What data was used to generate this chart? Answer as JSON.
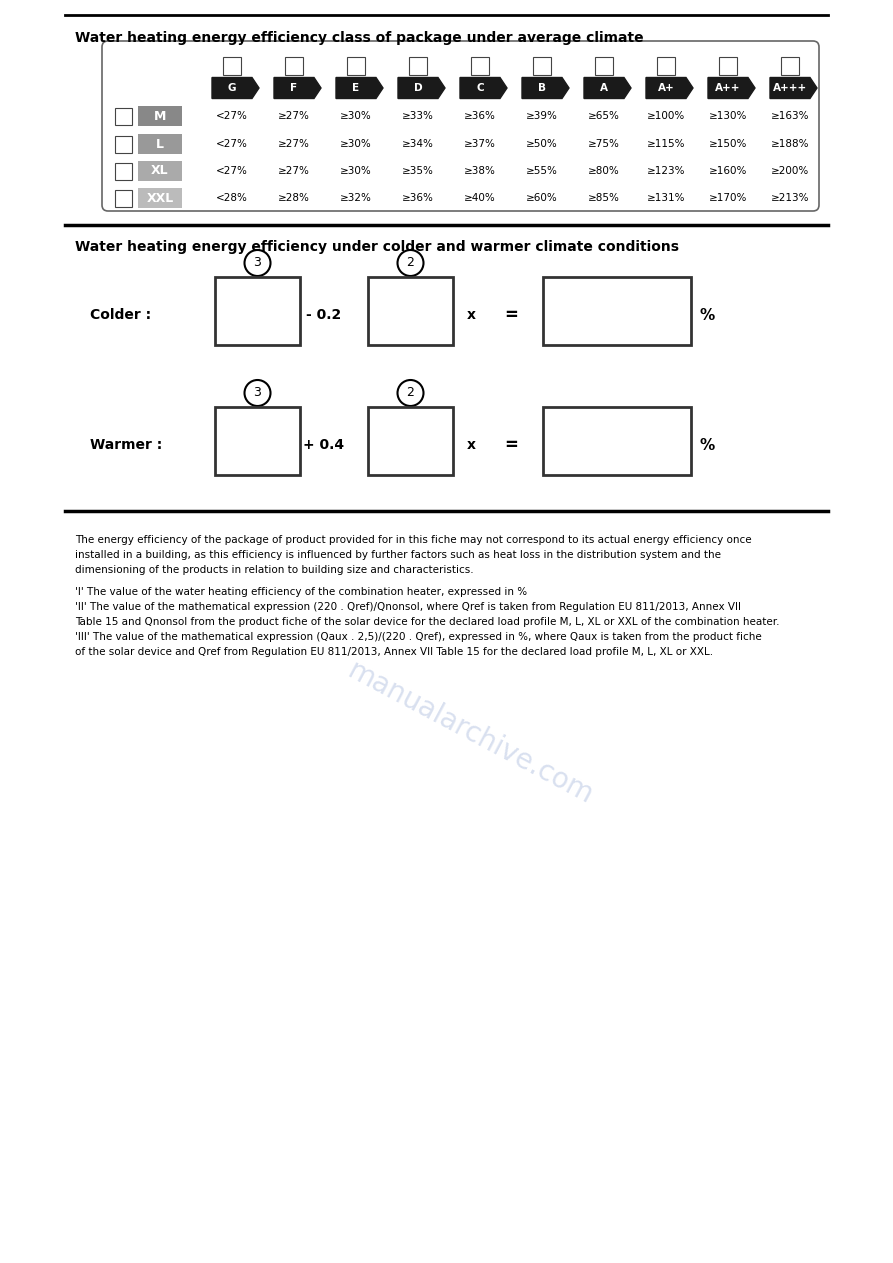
{
  "title1": "Water heating energy efficiency class of package under average climate",
  "title2": "Water heating energy efficiency under colder and warmer climate conditions",
  "bg_color": "#ffffff",
  "text_color": "#000000",
  "header_labels": [
    "G",
    "F",
    "E",
    "D",
    "C",
    "B",
    "A",
    "A+",
    "A++",
    "A+++"
  ],
  "size_labels": [
    "M",
    "L",
    "XL",
    "XXL"
  ],
  "size_colors": [
    "#888888",
    "#999999",
    "#aaaaaa",
    "#bbbbbb"
  ],
  "table_data": [
    [
      "<27%",
      "≥27%",
      "≥30%",
      "≥33%",
      "≥36%",
      "≥39%",
      "≥65%",
      "≥100%",
      "≥130%",
      "≥163%"
    ],
    [
      "<27%",
      "≥27%",
      "≥30%",
      "≥34%",
      "≥37%",
      "≥50%",
      "≥75%",
      "≥115%",
      "≥150%",
      "≥188%"
    ],
    [
      "<27%",
      "≥27%",
      "≥30%",
      "≥35%",
      "≥38%",
      "≥55%",
      "≥80%",
      "≥123%",
      "≥160%",
      "≥200%"
    ],
    [
      "<28%",
      "≥28%",
      "≥32%",
      "≥36%",
      "≥40%",
      "≥60%",
      "≥85%",
      "≥131%",
      "≥170%",
      "≥213%"
    ]
  ],
  "body_text": "The energy efficiency of the package of product provided for in this fiche may not correspond to its actual energy efficiency once\ninstalled in a building, as this efficiency is influenced by further factors such as heat loss in the distribution system and the\ndimensioning of the products in relation to building size and characteristics.",
  "footnote_lines": [
    "'I' The value of the water heating efficiency of the combination heater, expressed in %",
    "'II' The value of the mathematical expression (220 . Qref)/Qnonsol, where Qref is taken from Regulation EU 811/2013, Annex VII",
    "Table 15 and Qnonsol from the product fiche of the solar device for the declared load profile M, L, XL or XXL of the combination heater.",
    "'III' The value of the mathematical expression (Qaux . 2,5)/(220 . Qref), expressed in %, where Qaux is taken from the product fiche",
    "of the solar device and Qref from Regulation EU 811/2013, Annex VII Table 15 for the declared load profile M, L, XL or XXL."
  ]
}
